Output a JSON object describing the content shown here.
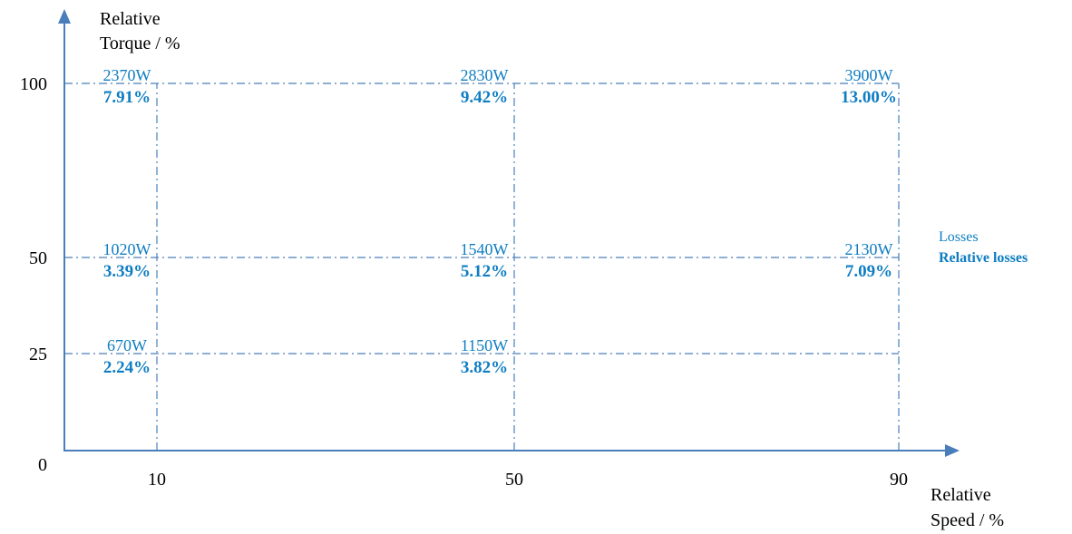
{
  "chart_data": {
    "type": "table",
    "y_axis_label_line1": "Relative",
    "y_axis_label_line2": "Torque / %",
    "x_axis_label_line1": "Relative",
    "x_axis_label_line2": "Speed / %",
    "x_ticks": [
      10,
      50,
      90
    ],
    "y_ticks": [
      0,
      25,
      50,
      100
    ],
    "xlim": [
      0,
      100
    ],
    "ylim": [
      0,
      100
    ],
    "legend": {
      "placement": "right",
      "losses_label": "Losses",
      "relative_losses_label": "Relative losses"
    },
    "points": [
      {
        "speed": 10,
        "torque": 100,
        "losses": "2370W",
        "relative_losses": "7.91%"
      },
      {
        "speed": 50,
        "torque": 100,
        "losses": "2830W",
        "relative_losses": "9.42%"
      },
      {
        "speed": 90,
        "torque": 100,
        "losses": "3900W",
        "relative_losses": "13.00%"
      },
      {
        "speed": 10,
        "torque": 50,
        "losses": "1020W",
        "relative_losses": "3.39%"
      },
      {
        "speed": 50,
        "torque": 50,
        "losses": "1540W",
        "relative_losses": "5.12%"
      },
      {
        "speed": 90,
        "torque": 50,
        "losses": "2130W",
        "relative_losses": "7.09%"
      },
      {
        "speed": 10,
        "torque": 25,
        "losses": "670W",
        "relative_losses": "2.24%"
      },
      {
        "speed": 50,
        "torque": 25,
        "losses": "1150W",
        "relative_losses": "3.82%"
      }
    ],
    "colors": {
      "axis": "#4A7EBB",
      "gridline": "#4A7EBB",
      "value_text": "#0E7DC2",
      "label_text": "#000000"
    }
  }
}
